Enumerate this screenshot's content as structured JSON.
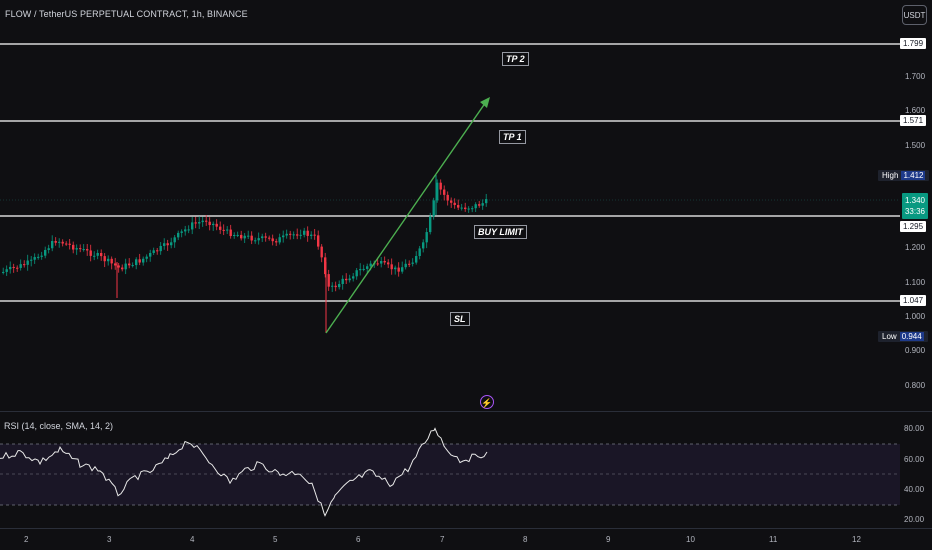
{
  "header": {
    "title": "FLOW / TetherUS PERPETUAL CONTRACT, 1h, BINANCE"
  },
  "currency_button": {
    "label": "USDT"
  },
  "price_axis": {
    "ticks": [
      "1.700",
      "1.600",
      "1.500",
      "1.200",
      "1.100",
      "1.000",
      "0.900",
      "0.800"
    ]
  },
  "levels": {
    "tp2": {
      "price_label": "1.799"
    },
    "tp1": {
      "price_label": "1.571"
    },
    "buy_limit": {
      "price_label": "1.295"
    },
    "sl": {
      "price_label": "1.047"
    }
  },
  "annotations": {
    "tp2": "TP 2",
    "tp1": "TP 1",
    "buy_limit": "BUY LIMIT",
    "sl": "SL"
  },
  "high_tag": {
    "label": "High",
    "value": "1.412"
  },
  "low_tag": {
    "label": "Low",
    "value": "0.944"
  },
  "current_price": {
    "value": "1.340",
    "countdown": "33:36"
  },
  "rsi": {
    "title": "RSI (14, close, SMA, 14, 2)",
    "ticks": [
      "80.00",
      "60.00",
      "40.00",
      "20.00"
    ]
  },
  "time_axis": {
    "ticks": [
      "2",
      "3",
      "4",
      "5",
      "6",
      "7",
      "8",
      "9",
      "10",
      "11",
      "12"
    ]
  },
  "colors": {
    "bull": "#089981",
    "bear": "#f23645",
    "arrow": "#4caf50",
    "background": "#0f0f12",
    "rsi_bg": "#1a1626"
  },
  "icons": {
    "bolt": "lightning-icon"
  }
}
